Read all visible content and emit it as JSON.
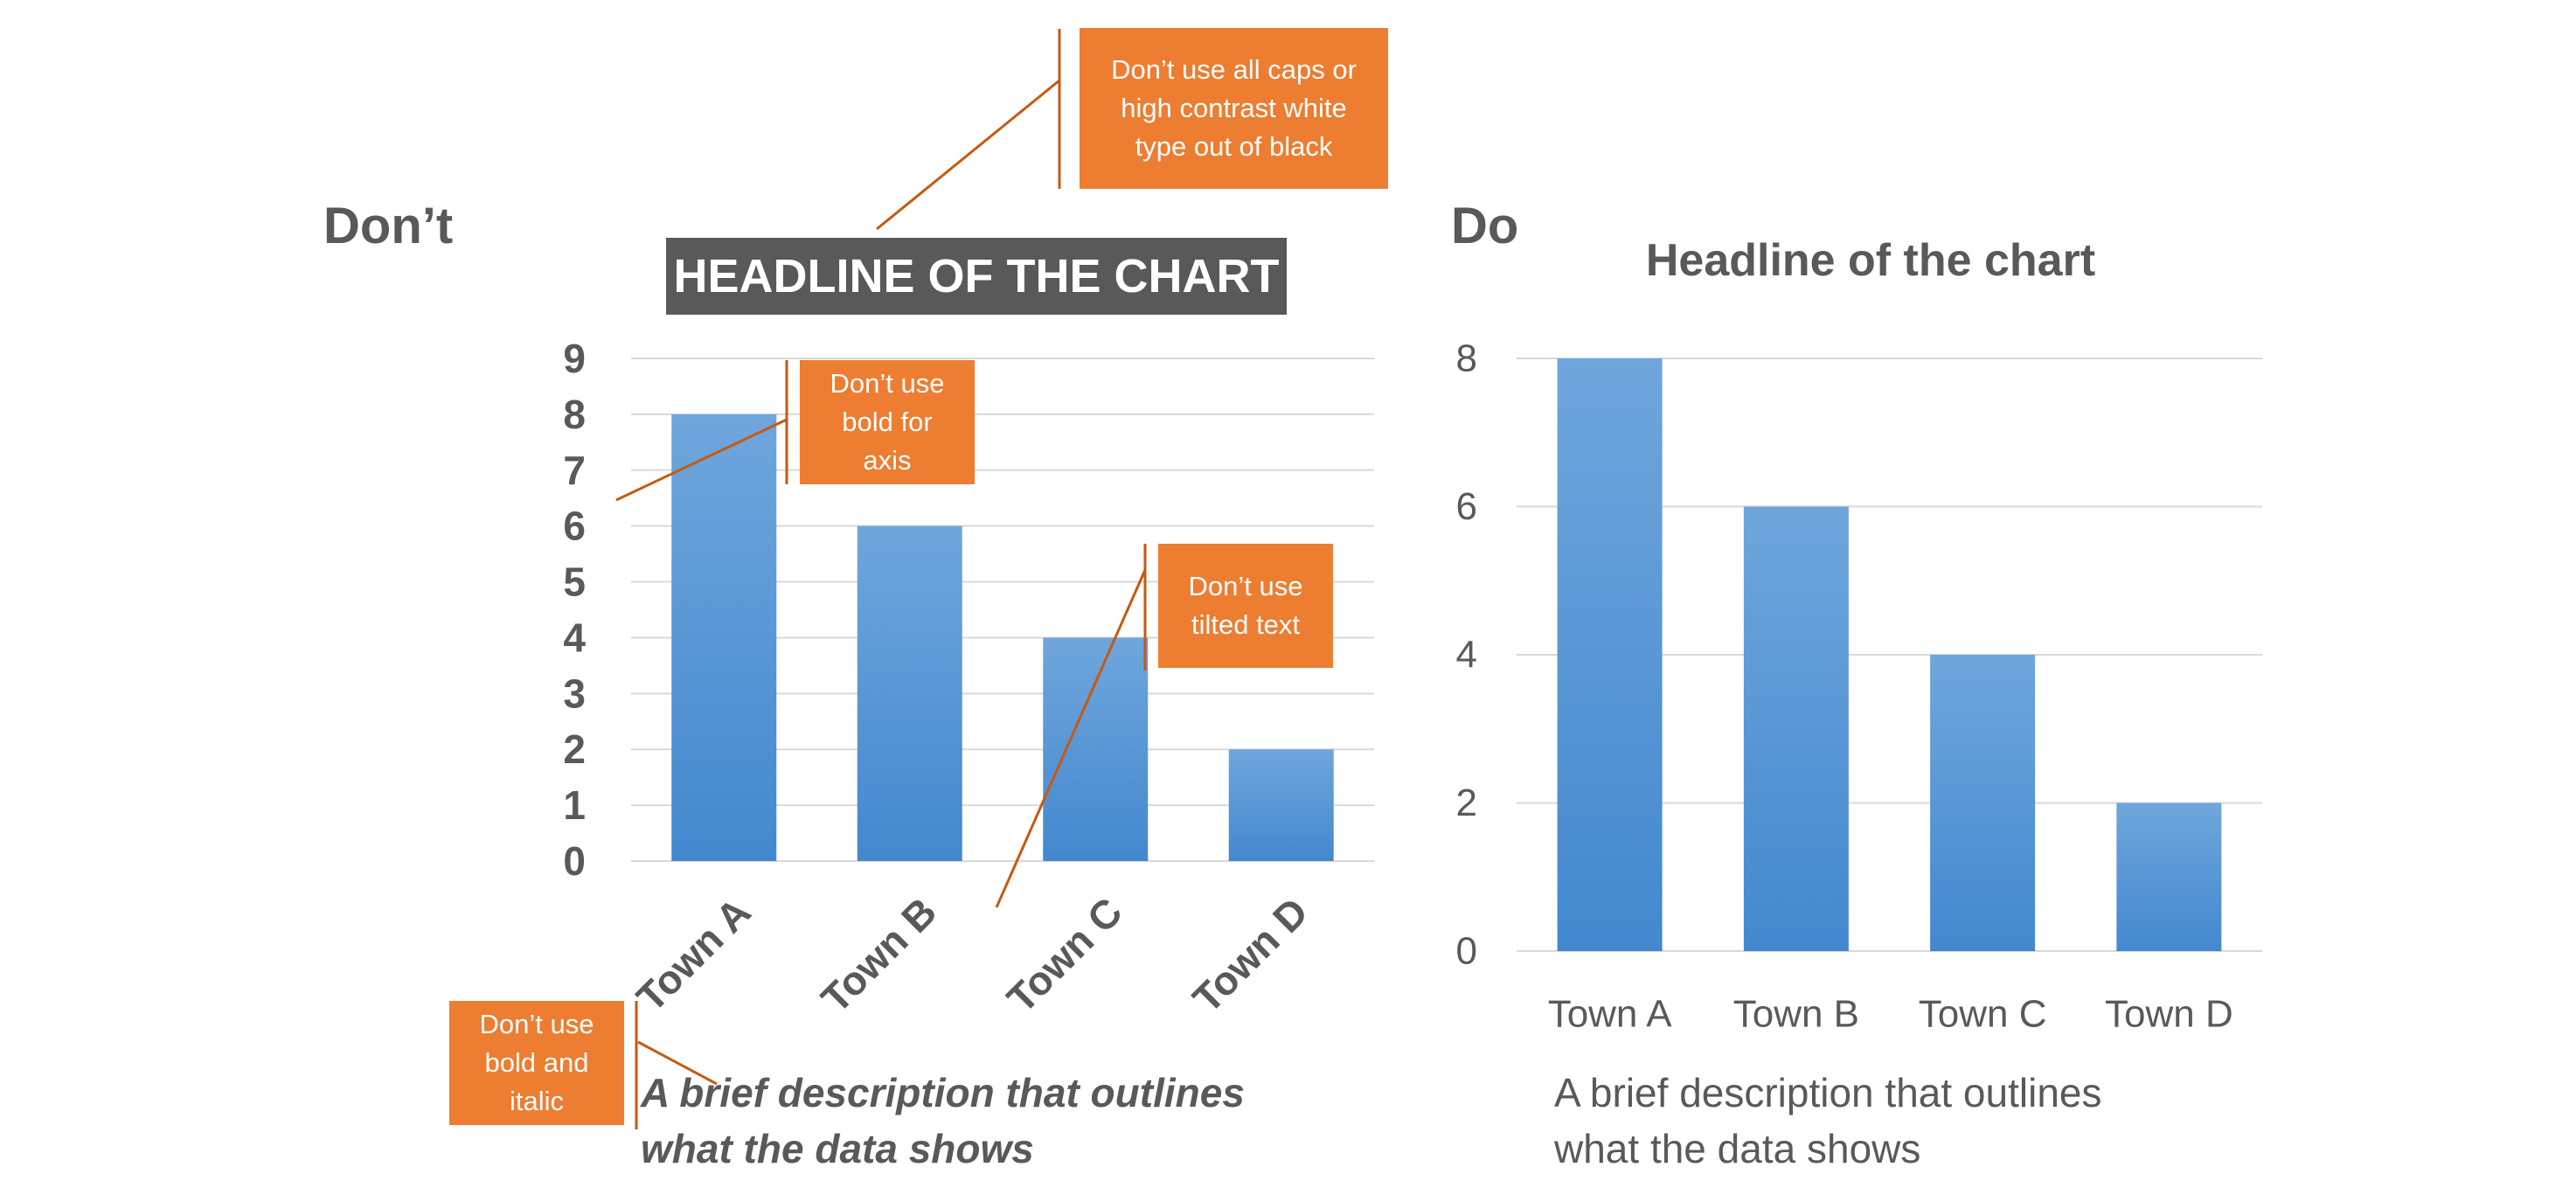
{
  "labels": {
    "dont": "Don’t",
    "do": "Do"
  },
  "callouts": {
    "caps": [
      "Don’t use all caps or",
      "high contrast white",
      "type out of black"
    ],
    "bold_axis": [
      "Don’t use",
      "bold for",
      "axis"
    ],
    "tilted": [
      "Don’t use",
      "tilted text"
    ],
    "bold_italic": [
      "Don’t use",
      "bold and",
      "italic"
    ]
  },
  "captions": {
    "dont": [
      "A brief description that outlines",
      "what the data shows"
    ],
    "do": [
      "A brief description that outlines",
      "what the data shows"
    ]
  },
  "colors": {
    "bar_top": "#6FA6DC",
    "bar_bottom": "#4388CF",
    "callout": "#ED7D31",
    "callout_line": "#C55A11",
    "gridline": "#D9D9D9",
    "text": "#595959"
  },
  "chart_data": [
    {
      "type": "bar",
      "title": "HEADLINE OF THE CHART",
      "categories": [
        "Town A",
        "Town B",
        "Town C",
        "Town D"
      ],
      "values": [
        8,
        6,
        4,
        2
      ],
      "ylim": [
        0,
        9
      ],
      "yticks": [
        0,
        1,
        2,
        3,
        4,
        5,
        6,
        7,
        8,
        9
      ],
      "grid": true,
      "tick_labels_bold": true,
      "xtick_rotation_deg": -45
    },
    {
      "type": "bar",
      "title": "Headline of the chart",
      "categories": [
        "Town A",
        "Town B",
        "Town C",
        "Town D"
      ],
      "values": [
        8,
        6,
        4,
        2
      ],
      "ylim": [
        0,
        8
      ],
      "yticks": [
        0,
        2,
        4,
        6,
        8
      ],
      "grid": true,
      "tick_labels_bold": false,
      "xtick_rotation_deg": 0
    }
  ]
}
